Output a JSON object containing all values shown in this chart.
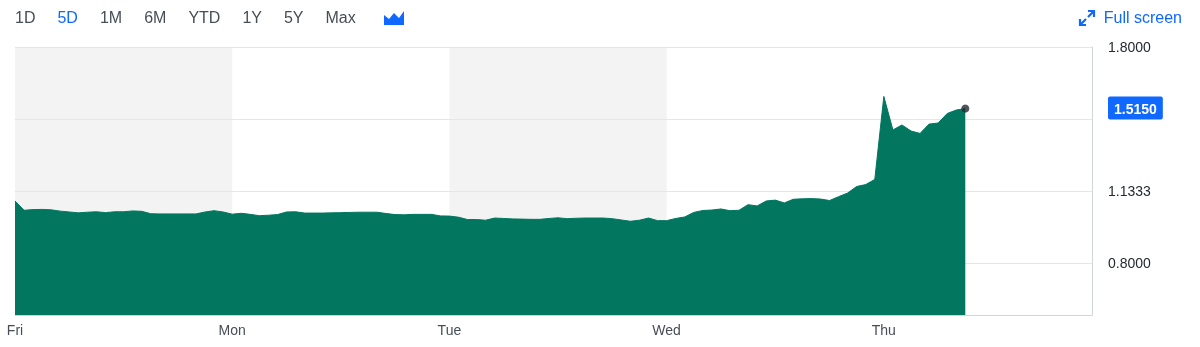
{
  "chart_data": {
    "type": "area",
    "categories": [
      "Fri",
      null,
      null,
      null,
      null,
      null,
      null,
      null,
      null,
      null,
      null,
      null,
      null,
      null,
      null,
      null,
      null,
      null,
      null,
      null,
      null,
      null,
      null,
      null,
      "Mon",
      null,
      null,
      null,
      null,
      null,
      null,
      null,
      null,
      null,
      null,
      null,
      null,
      null,
      null,
      null,
      null,
      null,
      null,
      null,
      null,
      null,
      null,
      null,
      "Tue",
      null,
      null,
      null,
      null,
      null,
      null,
      null,
      null,
      null,
      null,
      null,
      null,
      null,
      null,
      null,
      null,
      null,
      null,
      null,
      null,
      null,
      null,
      null,
      "Wed",
      null,
      null,
      null,
      null,
      null,
      null,
      null,
      null,
      null,
      null,
      null,
      null,
      null,
      null,
      null,
      null,
      null,
      null,
      null,
      null,
      null,
      null,
      null,
      "Thu",
      null,
      null,
      null,
      null,
      null,
      null,
      null,
      null,
      null,
      null,
      null,
      null,
      null,
      null,
      null,
      null,
      null,
      null,
      null,
      null,
      null,
      null,
      null
    ],
    "series": [
      {
        "marker": "none",
        "color": "#02765f",
        "values": [
          1.087,
          1.044,
          1.047,
          1.048,
          1.046,
          1.04,
          1.036,
          1.032,
          1.035,
          1.037,
          1.033,
          1.037,
          1.037,
          1.041,
          1.039,
          1.028,
          1.027,
          1.027,
          1.027,
          1.027,
          1.027,
          1.036,
          1.042,
          1.036,
          1.026,
          1.03,
          1.025,
          1.019,
          1.021,
          1.024,
          1.036,
          1.037,
          1.031,
          1.031,
          1.031,
          1.032,
          1.033,
          1.034,
          1.035,
          1.035,
          1.035,
          1.029,
          1.024,
          1.023,
          1.025,
          1.025,
          1.025,
          1.018,
          1.017,
          1.012,
          1.001,
          1.001,
          0.998,
          1.008,
          1.006,
          1.004,
          1.003,
          1.002,
          1.002,
          1.006,
          1.009,
          1.005,
          1.007,
          1.008,
          1.008,
          1.008,
          1.005,
          0.999,
          0.993,
          0.998,
          1.008,
          0.996,
          0.996,
          1.006,
          1.013,
          1.034,
          1.043,
          1.045,
          1.05,
          1.042,
          1.044,
          1.07,
          1.064,
          1.087,
          1.091,
          1.078,
          1.095,
          1.097,
          1.098,
          1.096,
          1.089,
          1.107,
          1.124,
          1.154,
          1.163,
          1.187,
          1.571,
          1.416,
          1.439,
          1.411,
          1.4,
          1.443,
          1.448,
          1.492,
          1.508,
          1.515,
          null,
          null,
          null,
          null,
          null,
          null,
          null,
          null,
          null,
          null,
          null,
          null,
          null,
          null
        ]
      },
      {
        "type": "scatter",
        "marker": "circle",
        "color": "#232a31",
        "values": [
          null,
          null,
          null,
          null,
          null,
          null,
          null,
          null,
          null,
          null,
          null,
          null,
          null,
          null,
          null,
          null,
          null,
          null,
          null,
          null,
          null,
          null,
          null,
          null,
          null,
          null,
          null,
          null,
          null,
          null,
          null,
          null,
          null,
          null,
          null,
          null,
          null,
          null,
          null,
          null,
          null,
          null,
          null,
          null,
          null,
          null,
          null,
          null,
          null,
          null,
          null,
          null,
          null,
          null,
          null,
          null,
          null,
          null,
          null,
          null,
          null,
          null,
          null,
          null,
          null,
          null,
          null,
          null,
          null,
          null,
          null,
          null,
          null,
          null,
          null,
          null,
          null,
          null,
          null,
          null,
          null,
          null,
          null,
          null,
          null,
          null,
          null,
          null,
          null,
          null,
          null,
          null,
          null,
          null,
          null,
          null,
          null,
          null,
          null,
          null,
          null,
          null,
          null,
          null,
          null,
          1.515,
          null,
          null,
          null,
          null,
          null,
          null,
          null,
          null,
          null,
          null,
          null,
          null,
          null,
          null
        ]
      }
    ],
    "ylim": [
      0.559,
      1.8
    ],
    "yticks": [
      {
        "value": 0.8,
        "label": "0.8000"
      },
      {
        "value": 1.1333,
        "label": "1.1333"
      },
      {
        "value": 1.4667,
        "label": null
      },
      {
        "value": 1.8,
        "label": "1.8000"
      }
    ],
    "grid": "y",
    "bands": [
      {
        "axis": "x",
        "from": "Fri",
        "to": "Mon",
        "color": "#f3f3f3"
      },
      {
        "axis": "x",
        "from": "Tue",
        "to": "Wed",
        "color": "#f3f3f3"
      }
    ],
    "annotations": [
      "1.5150",
      "1D",
      "5D",
      "1M",
      "6M",
      "YTD",
      "1Y",
      "5Y",
      "Max",
      "Full screen"
    ]
  }
}
